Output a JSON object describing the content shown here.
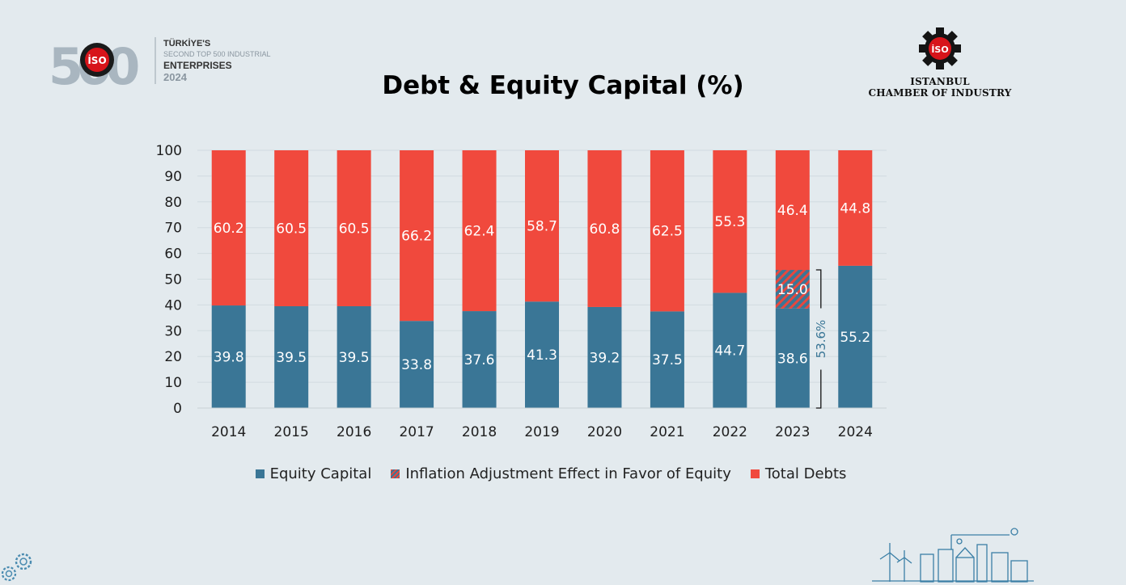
{
  "header": {
    "title": "Debt & Equity Capital (%)",
    "logo_500": {
      "numeral": "500",
      "badge": "İSO",
      "line1": "TÜRKİYE'S",
      "line2": "SECOND TOP 500 INDUSTRIAL",
      "line3": "ENTERPRISES",
      "line4": "2024"
    },
    "iso_logo": {
      "badge": "İSO",
      "line1": "ISTANBUL",
      "line2": "CHAMBER OF INDUSTRY"
    }
  },
  "chart_data": {
    "type": "bar",
    "stacked": true,
    "categories": [
      "2014",
      "2015",
      "2016",
      "2017",
      "2018",
      "2019",
      "2020",
      "2021",
      "2022",
      "2023",
      "2024"
    ],
    "series": [
      {
        "name": "Equity Capital",
        "values": [
          39.8,
          39.5,
          39.5,
          33.8,
          37.6,
          41.3,
          39.2,
          37.5,
          44.7,
          38.6,
          55.2
        ],
        "color": "#3a7696"
      },
      {
        "name": "Inflation Adjustment Effect in Favor of Equity",
        "values": [
          null,
          null,
          null,
          null,
          null,
          null,
          null,
          null,
          null,
          15.0,
          null
        ],
        "color": "#3a7696",
        "pattern": "hatched"
      },
      {
        "name": "Total Debts",
        "values": [
          60.2,
          60.5,
          60.5,
          66.2,
          62.4,
          58.7,
          60.8,
          62.5,
          55.3,
          46.4,
          44.8
        ],
        "color": "#f0493d"
      }
    ],
    "value_labels": [
      [
        "39.8",
        "39.5",
        "39.5",
        "33.8",
        "37.6",
        "41.3",
        "39.2",
        "37.5",
        "44.7",
        "38.6",
        "55.2"
      ],
      [
        "",
        "",
        "",
        "",
        "",
        "",
        "",
        "",
        "",
        "15.0",
        ""
      ],
      [
        "60.2",
        "60.5",
        "60.5",
        "66.2",
        "62.4",
        "58.7",
        "60.8",
        "62.5",
        "55.3",
        "46.4",
        "44.8"
      ]
    ],
    "yticks": [
      "0",
      "10",
      "20",
      "30",
      "40",
      "50",
      "60",
      "70",
      "80",
      "90",
      "100"
    ],
    "ylim": [
      0,
      100
    ],
    "grid": true,
    "legend_position": "bottom",
    "annotation": {
      "category": "2023",
      "from": 0,
      "to": 53.6,
      "text": "53.6%"
    }
  }
}
